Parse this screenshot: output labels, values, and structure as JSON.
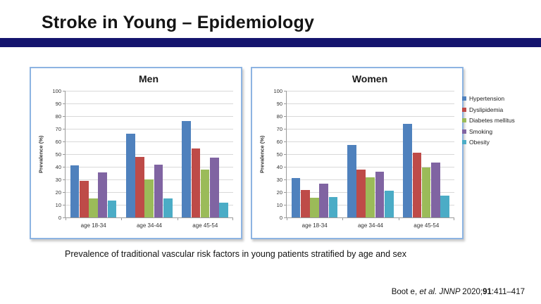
{
  "slide": {
    "title": "Stroke in Young – Epidemiology",
    "caption": "Prevalence of traditional vascular risk factors in young patients stratified by age and sex",
    "citation": {
      "author": "Boot e, ",
      "etal": "et al. ",
      "journal": "JNNP ",
      "year": "2020;",
      "volume": "91",
      "pages": ":411–417"
    },
    "accent_color": "#15156E"
  },
  "legend": {
    "position": "right-of-women-chart",
    "items": [
      {
        "label": "Hypertension",
        "color": "#4F81BD"
      },
      {
        "label": "Dyslipidemia",
        "color": "#BE4B48"
      },
      {
        "label": "Diabetes mellitus",
        "color": "#9BBB59"
      },
      {
        "label": "Smoking",
        "color": "#8064A2"
      },
      {
        "label": "Obesity",
        "color": "#4BACC6"
      }
    ]
  },
  "chart_data": [
    {
      "type": "bar",
      "title": "Men",
      "ylabel": "Prevalence (%)",
      "ylim": [
        0,
        100
      ],
      "ytick_step": 10,
      "grid": true,
      "categories": [
        "age 18-34",
        "age 34-44",
        "age 45-54"
      ],
      "series": [
        {
          "name": "Hypertension",
          "color": "#4F81BD",
          "values": [
            41,
            66,
            76
          ]
        },
        {
          "name": "Dyslipidemia",
          "color": "#BE4B48",
          "values": [
            29,
            48,
            54.5
          ]
        },
        {
          "name": "Diabetes mellitus",
          "color": "#9BBB59",
          "values": [
            15,
            30,
            38
          ]
        },
        {
          "name": "Smoking",
          "color": "#8064A2",
          "values": [
            35.5,
            41.5,
            47
          ]
        },
        {
          "name": "Obesity",
          "color": "#4BACC6",
          "values": [
            13.5,
            15,
            11.5
          ]
        }
      ]
    },
    {
      "type": "bar",
      "title": "Women",
      "ylabel": "Prevalence (%)",
      "ylim": [
        0,
        100
      ],
      "ytick_step": 10,
      "grid": true,
      "categories": [
        "age 18-34",
        "age 34-44",
        "age 45-54"
      ],
      "series": [
        {
          "name": "Hypertension",
          "color": "#4F81BD",
          "values": [
            31,
            57.5,
            74
          ]
        },
        {
          "name": "Dyslipidemia",
          "color": "#BE4B48",
          "values": [
            21.5,
            38,
            51
          ]
        },
        {
          "name": "Diabetes mellitus",
          "color": "#9BBB59",
          "values": [
            15.5,
            31.5,
            39.5
          ]
        },
        {
          "name": "Smoking",
          "color": "#8064A2",
          "values": [
            26.5,
            36,
            43.5
          ]
        },
        {
          "name": "Obesity",
          "color": "#4BACC6",
          "values": [
            16,
            21,
            17
          ]
        }
      ]
    }
  ]
}
